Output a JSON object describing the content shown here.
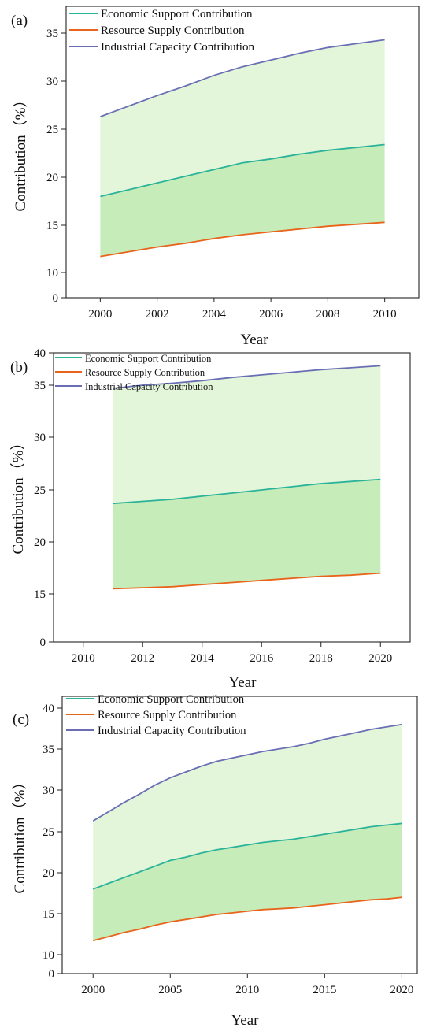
{
  "chart_data": [
    {
      "panel_label": "(a)",
      "type": "area",
      "xlabel": "Year",
      "ylabel": "Contribution（%）",
      "x": [
        2000,
        2001,
        2002,
        2003,
        2004,
        2005,
        2006,
        2007,
        2008,
        2009,
        2010
      ],
      "xticks": [
        2000,
        2002,
        2004,
        2006,
        2008,
        2010
      ],
      "xticks_labels": [
        "2000",
        "2002",
        "2004",
        "2006",
        "2008",
        "2010"
      ],
      "xlim": [
        1998.8,
        2011.2
      ],
      "yticks": [
        0,
        10,
        15,
        20,
        25,
        30,
        35
      ],
      "yticks_labels": [
        "0",
        "10",
        "15",
        "20",
        "25",
        "30",
        "35"
      ],
      "ylim_note": "broken y-axis: 0 then 10 to 37",
      "legend_position": "top-left",
      "grid": false,
      "series": [
        {
          "name": "Economic Support Contribution",
          "color": "#2bb39a",
          "values": [
            18.0,
            18.7,
            19.4,
            20.1,
            20.8,
            21.5,
            21.9,
            22.4,
            22.8,
            23.1,
            23.4
          ]
        },
        {
          "name": "Resource Supply Contribution",
          "color": "#e8641a",
          "values": [
            11.7,
            12.2,
            12.7,
            13.1,
            13.6,
            14.0,
            14.3,
            14.6,
            14.9,
            15.1,
            15.3
          ]
        },
        {
          "name": "Industrial Capacity Contribution",
          "color": "#6a6fb5",
          "values": [
            26.3,
            27.4,
            28.5,
            29.5,
            30.6,
            31.5,
            32.2,
            32.9,
            33.5,
            33.9,
            34.3
          ]
        }
      ]
    },
    {
      "panel_label": "(b)",
      "type": "area",
      "xlabel": "Year",
      "ylabel": "Contribution（%）",
      "x": [
        2011,
        2012,
        2013,
        2014,
        2015,
        2016,
        2017,
        2018,
        2019,
        2020
      ],
      "xticks": [
        2010,
        2012,
        2014,
        2016,
        2018,
        2020
      ],
      "xticks_labels": [
        "2010",
        "2012",
        "2014",
        "2016",
        "2018",
        "2020"
      ],
      "xlim": [
        2009.0,
        2021.0
      ],
      "yticks": [
        0,
        15,
        20,
        25,
        30,
        35,
        40
      ],
      "yticks_labels": [
        "0",
        "15",
        "20",
        "25",
        "30",
        "35",
        "40"
      ],
      "ylim_note": "broken y-axis: 0 then 15 to 40",
      "legend_position": "top-left",
      "grid": false,
      "series": [
        {
          "name": "Economic Support Contribution",
          "color": "#2bb39a",
          "values": [
            23.7,
            23.9,
            24.1,
            24.4,
            24.7,
            25.0,
            25.3,
            25.6,
            25.8,
            26.0
          ]
        },
        {
          "name": "Resource Supply Contribution",
          "color": "#e8641a",
          "values": [
            15.5,
            15.6,
            15.7,
            15.9,
            16.1,
            16.3,
            16.5,
            16.7,
            16.8,
            17.0
          ]
        },
        {
          "name": "Industrial Capacity Contribution",
          "color": "#6a6fb5",
          "values": [
            34.7,
            35.0,
            35.3,
            35.7,
            36.2,
            36.6,
            37.0,
            37.4,
            37.7,
            38.0
          ]
        }
      ]
    },
    {
      "panel_label": "(c)",
      "type": "area",
      "xlabel": "Year",
      "ylabel": "Contribution（%）",
      "x": [
        2000,
        2001,
        2002,
        2003,
        2004,
        2005,
        2006,
        2007,
        2008,
        2009,
        2010,
        2011,
        2012,
        2013,
        2014,
        2015,
        2016,
        2017,
        2018,
        2019,
        2020
      ],
      "xticks": [
        2000,
        2005,
        2010,
        2015,
        2020
      ],
      "xticks_labels": [
        "2000",
        "2005",
        "2010",
        "2015",
        "2020"
      ],
      "xlim": [
        1998.0,
        2021.0
      ],
      "yticks": [
        0,
        10,
        15,
        20,
        25,
        30,
        35,
        40
      ],
      "yticks_labels": [
        "0",
        "10",
        "15",
        "20",
        "25",
        "30",
        "35",
        "40"
      ],
      "ylim_note": "broken y-axis: 0 then 10 to 42",
      "legend_position": "top-left",
      "grid": false,
      "series": [
        {
          "name": "Economic Support Contribution",
          "color": "#2bb39a",
          "values": [
            18.0,
            18.7,
            19.4,
            20.1,
            20.8,
            21.5,
            21.9,
            22.4,
            22.8,
            23.1,
            23.4,
            23.7,
            23.9,
            24.1,
            24.4,
            24.7,
            25.0,
            25.3,
            25.6,
            25.8,
            26.0
          ]
        },
        {
          "name": "Resource Supply Contribution",
          "color": "#e8641a",
          "values": [
            11.7,
            12.2,
            12.7,
            13.1,
            13.6,
            14.0,
            14.3,
            14.6,
            14.9,
            15.1,
            15.3,
            15.5,
            15.6,
            15.7,
            15.9,
            16.1,
            16.3,
            16.5,
            16.7,
            16.8,
            17.0
          ]
        },
        {
          "name": "Industrial Capacity Contribution",
          "color": "#6a6fb5",
          "values": [
            26.3,
            27.4,
            28.5,
            29.5,
            30.6,
            31.5,
            32.2,
            32.9,
            33.5,
            33.9,
            34.3,
            34.7,
            35.0,
            35.3,
            35.7,
            36.2,
            36.6,
            37.0,
            37.4,
            37.7,
            38.0
          ]
        }
      ]
    }
  ],
  "colors": {
    "upper_fill": "#e3f6da",
    "lower_fill": "#c6ecba",
    "axis": "#222222"
  }
}
